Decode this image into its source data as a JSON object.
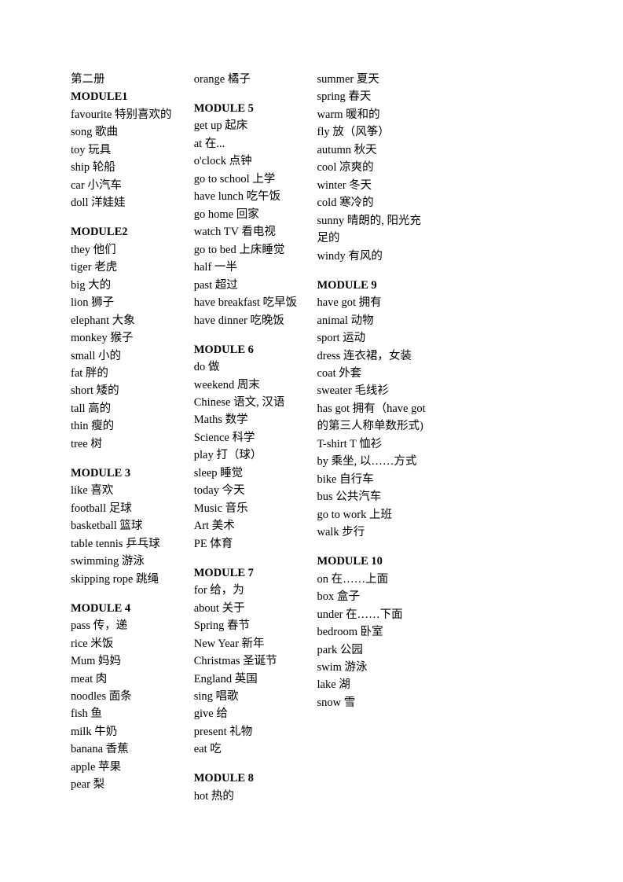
{
  "page_title": "第二册",
  "modules": [
    {
      "heading": "MODULE1",
      "entries": [
        "favourite  特别喜欢的",
        "song  歌曲",
        "toy 玩具",
        "ship  轮船",
        "car 小汽车",
        "doll 洋娃娃"
      ]
    },
    {
      "heading": "MODULE2",
      "entries": [
        "they 他们",
        "tiger 老虎",
        "big 大的",
        "lion 狮子",
        "elephant 大象",
        "monkey 猴子",
        "small 小的",
        "fat 胖的",
        "short 矮的",
        "tall 高的",
        "thin 瘦的",
        "tree 树"
      ]
    },
    {
      "heading": "MODULE 3",
      "entries": [
        "like       喜欢",
        "football       足球",
        "basketball      篮球",
        "table tennis     乒乓球",
        "swimming     游泳",
        "skipping rope  跳绳"
      ]
    },
    {
      "heading": "MODULE 4",
      "entries": [
        "pass      传，递",
        "rice       米饭",
        "Mum 妈妈",
        "meat       肉",
        "noodles      面条",
        "fish       鱼",
        "milk       牛奶",
        "banana       香蕉",
        "apple       苹果",
        "pear       梨",
        "orange       橘子"
      ]
    },
    {
      "heading": "MODULE 5",
      "entries": [
        "get up 起床",
        "at 在...",
        "o'clock 点钟",
        "go to school  上学",
        "have lunch 吃午饭",
        "go home  回家",
        "watch TV  看电视",
        "go to bed  上床睡觉",
        "half 一半",
        "past 超过",
        "have breakfast 吃早饭",
        "have dinner 吃晚饭"
      ]
    },
    {
      "heading": "MODULE 6",
      "entries": [
        "do 做",
        "weekend 周末",
        "Chinese 语文, 汉语",
        "Maths 数学",
        "Science 科学",
        "play 打（球）",
        "sleep 睡觉",
        "today 今天",
        "Music 音乐",
        "Art 美术",
        "PE 体育"
      ]
    },
    {
      "heading": "MODULE 7",
      "entries": [
        "for 给，为",
        "about 关于",
        "Spring 春节",
        "New Year 新年",
        "Christmas 圣诞节",
        "England 英国",
        "sing 唱歌",
        "give 给",
        "present 礼物",
        "eat 吃"
      ]
    },
    {
      "heading": "MODULE 8",
      "entries": [
        "hot 热的",
        "summer 夏天",
        "spring 春天",
        "warm 暖和的",
        "fly 放（风筝）",
        "autumn 秋天",
        "cool 凉爽的",
        "winter 冬天",
        "cold 寒冷的",
        "sunny 晴朗的,  阳光充足的",
        "windy 有风的"
      ]
    },
    {
      "heading": "MODULE 9",
      "entries": [
        "have got 拥有",
        "animal 动物",
        "sport 运动",
        "dress  连衣裙，女装",
        "coat 外套",
        "sweater 毛线衫",
        "has got 拥有（have got 的第三人称单数形式)",
        "T-shirt T 恤衫",
        "by 乘坐, 以……方式",
        "bike 自行车",
        "bus 公共汽车",
        "go to work  上班",
        "walk 步行"
      ]
    },
    {
      "heading": "MODULE 10",
      "entries": [
        "on 在……上面",
        "box 盒子",
        "under  在……下面",
        "bedroom  卧室",
        "park 公园",
        "swim 游泳",
        "lake 湖",
        "snow 雪"
      ]
    }
  ]
}
